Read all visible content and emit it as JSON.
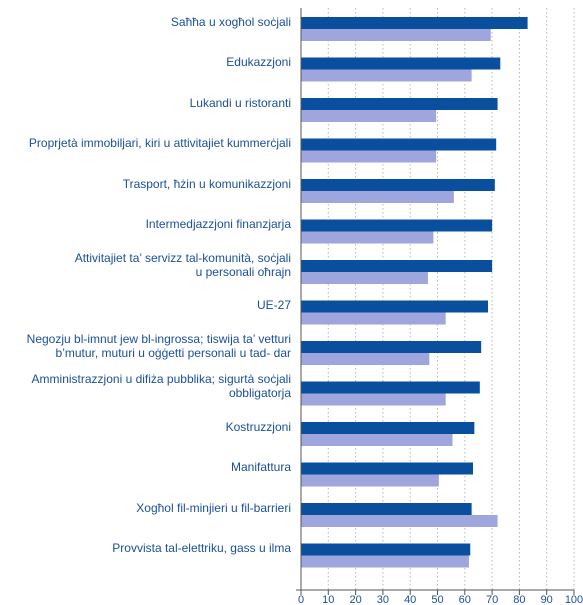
{
  "chart_data": {
    "type": "bar",
    "orientation": "horizontal",
    "categories": [
      "Saħħa u xogħol soċjali",
      "Edukazzjoni",
      "Lukandi u ristoranti",
      "Proprjetà immobiljari, kiri u attivitajiet kummerċjali",
      "Trasport, ħżin u komunikazzjoni",
      "Intermedjazzjoni finanzjarja",
      "Attivitajiet ta’ servizz tal-komunità, soċjali\nu personali oħrajn",
      "UE-27",
      "Negozju bl-imnut jew bl-ingrossa; tiswija ta’ vetturi\nb’mutur, muturi u oġġetti personali u tad- dar",
      "Amministrazzjoni u difiża pubblika; sigurtà soċjali\nobbligatorja",
      "Kostruzzjoni",
      "Manifattura",
      "Xogħol fil-minjieri u fil-barrieri",
      "Provvista tal-elettriku, gass u ilma"
    ],
    "series": [
      {
        "values": [
          83,
          73,
          72,
          71.5,
          71,
          70,
          70,
          68.5,
          66,
          65.5,
          63.5,
          63,
          62.5,
          62
        ],
        "color": "#0a4f9e"
      },
      {
        "values": [
          69.5,
          62.5,
          49.5,
          49.5,
          56,
          48.5,
          46.5,
          53,
          47,
          53,
          55.5,
          50.5,
          72,
          61.5
        ],
        "color": "#9ea6dd"
      }
    ],
    "x_ticks": [
      "0",
      "10",
      "20",
      "30",
      "40",
      "50",
      "60",
      "70",
      "80",
      "90",
      "100"
    ],
    "xlim": [
      0,
      100
    ],
    "grid": "vertical dotted",
    "legend": "none"
  }
}
